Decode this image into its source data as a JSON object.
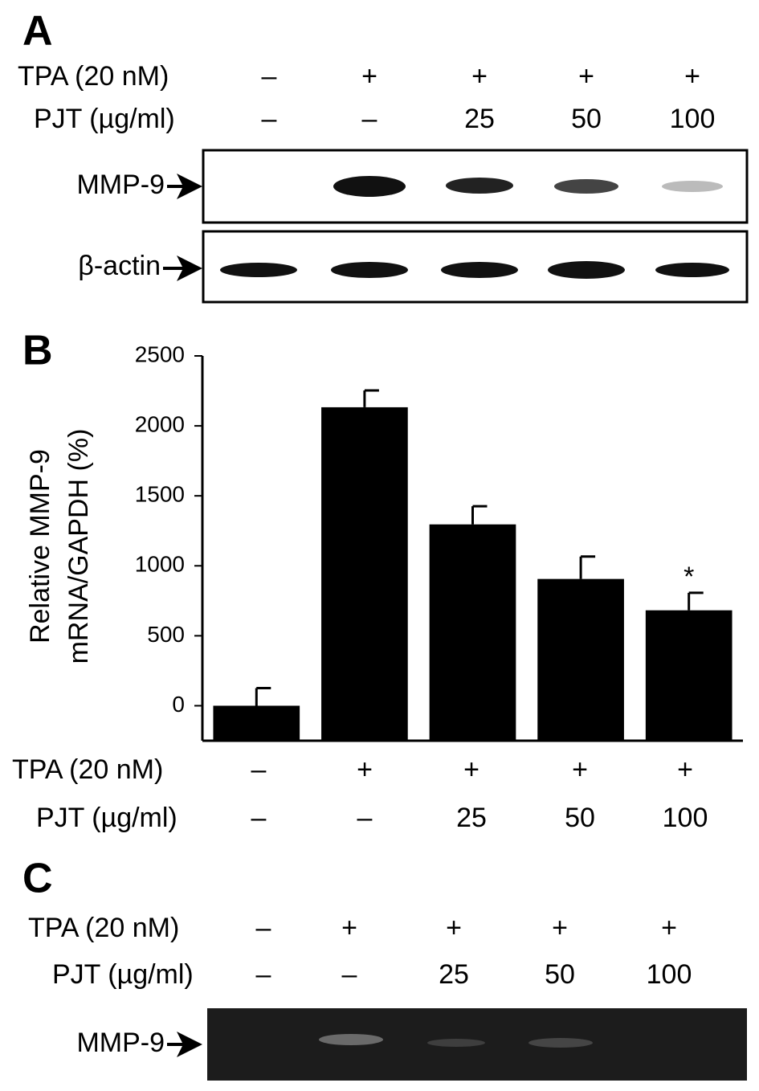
{
  "panel_a": {
    "label": "A",
    "rows": [
      {
        "label": "TPA (20 nM)",
        "values": [
          "–",
          "+",
          "+",
          "+",
          "+"
        ]
      },
      {
        "label": "PJT (µg/ml)",
        "values": [
          "–",
          "–",
          "25",
          "50",
          "100"
        ]
      }
    ],
    "blots": [
      "MMP-9",
      "β-actin"
    ]
  },
  "chart_data": {
    "type": "bar",
    "panel_label": "B",
    "y_label": [
      "Relative MMP-9",
      "mRNA/GAPDH (%)"
    ],
    "values": [
      0,
      2133,
      1296,
      906,
      682
    ],
    "error": [
      126,
      120,
      130,
      160,
      125
    ],
    "significance": [
      null,
      null,
      null,
      null,
      "*"
    ],
    "color": "#000000",
    "ylim": [
      -250,
      2500
    ],
    "yticks": [
      0,
      500,
      1000,
      1500,
      2000,
      2500
    ],
    "conditions": [
      {
        "label": "TPA (20 nM)",
        "values": [
          "–",
          "+",
          "+",
          "+",
          "+"
        ]
      },
      {
        "label": "PJT (µg/ml)",
        "values": [
          "–",
          "–",
          "25",
          "50",
          "100"
        ]
      }
    ]
  },
  "panel_c": {
    "label": "C",
    "rows": [
      {
        "label": "TPA (20 nM)",
        "values": [
          "–",
          "+",
          "+",
          "+",
          "+"
        ]
      },
      {
        "label": "PJT (µg/ml)",
        "values": [
          "–",
          "–",
          "25",
          "50",
          "100"
        ]
      }
    ],
    "gel": "MMP-9"
  }
}
